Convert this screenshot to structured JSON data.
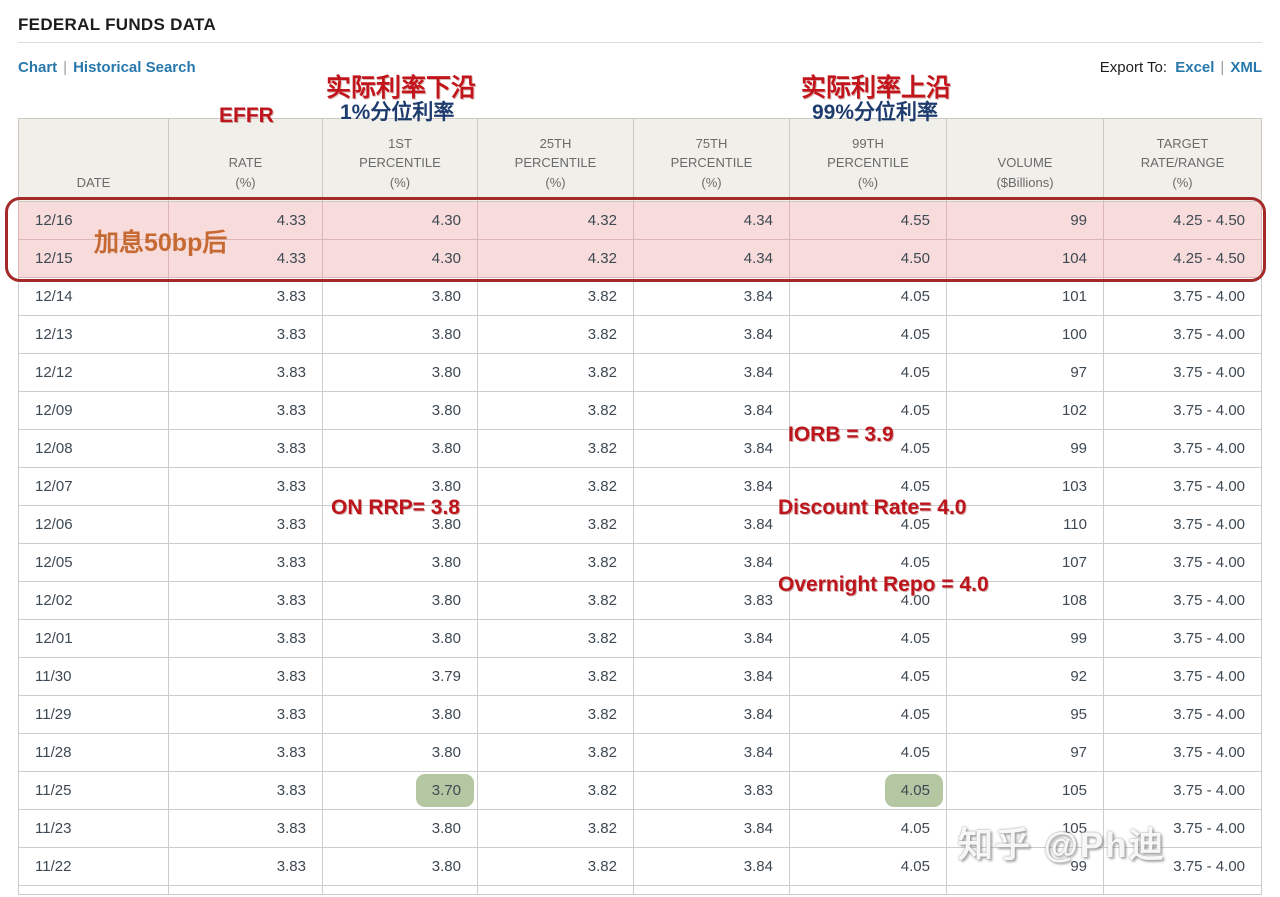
{
  "header": {
    "title": "FEDERAL FUNDS DATA"
  },
  "nav": {
    "chart": "Chart",
    "historical_search": "Historical Search",
    "separator": "|",
    "export_label": "Export To:",
    "excel": "Excel",
    "xml": "XML"
  },
  "annotations": {
    "effr": "EFFR",
    "lower_edge_cn": "实际利率下沿",
    "lower_edge_sub": "1%分位利率",
    "upper_edge_cn": "实际利率上沿",
    "upper_edge_sub": "99%分位利率",
    "rate_hike": "加息50bp后",
    "iorb": "IORB = 3.9",
    "on_rrp": "ON RRP= 3.8",
    "discount_rate": "Discount Rate= 4.0",
    "overnight_repo": "Overnight Repo = 4.0"
  },
  "watermark": "知乎 @Ph迪",
  "colors": {
    "link_blue": "#2878ac",
    "header_bg": "#f1efe9",
    "grid": "#cccccc",
    "cell_text": "#3d4953",
    "highlight_row_bg": "#f8dbdb",
    "highlight_border": "#a42a2a",
    "green_pill": "#b5c7a2",
    "annotation_red": "#bc151c",
    "annotation_navy": "#1e3c6d",
    "annotation_orange": "#c56a33"
  },
  "table": {
    "headers": [
      {
        "lines": [
          "DATE"
        ]
      },
      {
        "lines": [
          "RATE",
          "(%)"
        ]
      },
      {
        "lines": [
          "1ST",
          "PERCENTILE",
          "(%)"
        ]
      },
      {
        "lines": [
          "25TH",
          "PERCENTILE",
          "(%)"
        ]
      },
      {
        "lines": [
          "75TH",
          "PERCENTILE",
          "(%)"
        ]
      },
      {
        "lines": [
          "99TH",
          "PERCENTILE",
          "(%)"
        ]
      },
      {
        "lines": [
          "VOLUME",
          "($Billions)"
        ]
      },
      {
        "lines": [
          "TARGET",
          "RATE/RANGE",
          "(%)"
        ]
      }
    ],
    "rows": [
      {
        "date": "12/16",
        "values": [
          "4.33",
          "4.30",
          "4.32",
          "4.34",
          "4.55",
          "99",
          "4.25 - 4.50"
        ],
        "highlight": true,
        "green": []
      },
      {
        "date": "12/15",
        "values": [
          "4.33",
          "4.30",
          "4.32",
          "4.34",
          "4.50",
          "104",
          "4.25 - 4.50"
        ],
        "highlight": true,
        "green": []
      },
      {
        "date": "12/14",
        "values": [
          "3.83",
          "3.80",
          "3.82",
          "3.84",
          "4.05",
          "101",
          "3.75 - 4.00"
        ],
        "highlight": false,
        "green": []
      },
      {
        "date": "12/13",
        "values": [
          "3.83",
          "3.80",
          "3.82",
          "3.84",
          "4.05",
          "100",
          "3.75 - 4.00"
        ],
        "highlight": false,
        "green": []
      },
      {
        "date": "12/12",
        "values": [
          "3.83",
          "3.80",
          "3.82",
          "3.84",
          "4.05",
          "97",
          "3.75 - 4.00"
        ],
        "highlight": false,
        "green": []
      },
      {
        "date": "12/09",
        "values": [
          "3.83",
          "3.80",
          "3.82",
          "3.84",
          "4.05",
          "102",
          "3.75 - 4.00"
        ],
        "highlight": false,
        "green": []
      },
      {
        "date": "12/08",
        "values": [
          "3.83",
          "3.80",
          "3.82",
          "3.84",
          "4.05",
          "99",
          "3.75 - 4.00"
        ],
        "highlight": false,
        "green": []
      },
      {
        "date": "12/07",
        "values": [
          "3.83",
          "3.80",
          "3.82",
          "3.84",
          "4.05",
          "103",
          "3.75 - 4.00"
        ],
        "highlight": false,
        "green": []
      },
      {
        "date": "12/06",
        "values": [
          "3.83",
          "3.80",
          "3.82",
          "3.84",
          "4.05",
          "110",
          "3.75 - 4.00"
        ],
        "highlight": false,
        "green": []
      },
      {
        "date": "12/05",
        "values": [
          "3.83",
          "3.80",
          "3.82",
          "3.84",
          "4.05",
          "107",
          "3.75 - 4.00"
        ],
        "highlight": false,
        "green": []
      },
      {
        "date": "12/02",
        "values": [
          "3.83",
          "3.80",
          "3.82",
          "3.83",
          "4.00",
          "108",
          "3.75 - 4.00"
        ],
        "highlight": false,
        "green": []
      },
      {
        "date": "12/01",
        "values": [
          "3.83",
          "3.80",
          "3.82",
          "3.84",
          "4.05",
          "99",
          "3.75 - 4.00"
        ],
        "highlight": false,
        "green": []
      },
      {
        "date": "11/30",
        "values": [
          "3.83",
          "3.79",
          "3.82",
          "3.84",
          "4.05",
          "92",
          "3.75 - 4.00"
        ],
        "highlight": false,
        "green": []
      },
      {
        "date": "11/29",
        "values": [
          "3.83",
          "3.80",
          "3.82",
          "3.84",
          "4.05",
          "95",
          "3.75 - 4.00"
        ],
        "highlight": false,
        "green": []
      },
      {
        "date": "11/28",
        "values": [
          "3.83",
          "3.80",
          "3.82",
          "3.84",
          "4.05",
          "97",
          "3.75 - 4.00"
        ],
        "highlight": false,
        "green": []
      },
      {
        "date": "11/25",
        "values": [
          "3.83",
          "3.70",
          "3.82",
          "3.83",
          "4.05",
          "105",
          "3.75 - 4.00"
        ],
        "highlight": false,
        "green": [
          1,
          4
        ]
      },
      {
        "date": "11/23",
        "values": [
          "3.83",
          "3.80",
          "3.82",
          "3.84",
          "4.05",
          "105",
          "3.75 - 4.00"
        ],
        "highlight": false,
        "green": []
      },
      {
        "date": "11/22",
        "values": [
          "3.83",
          "3.80",
          "3.82",
          "3.84",
          "4.05",
          "99",
          "3.75 - 4.00"
        ],
        "highlight": false,
        "green": []
      }
    ]
  }
}
